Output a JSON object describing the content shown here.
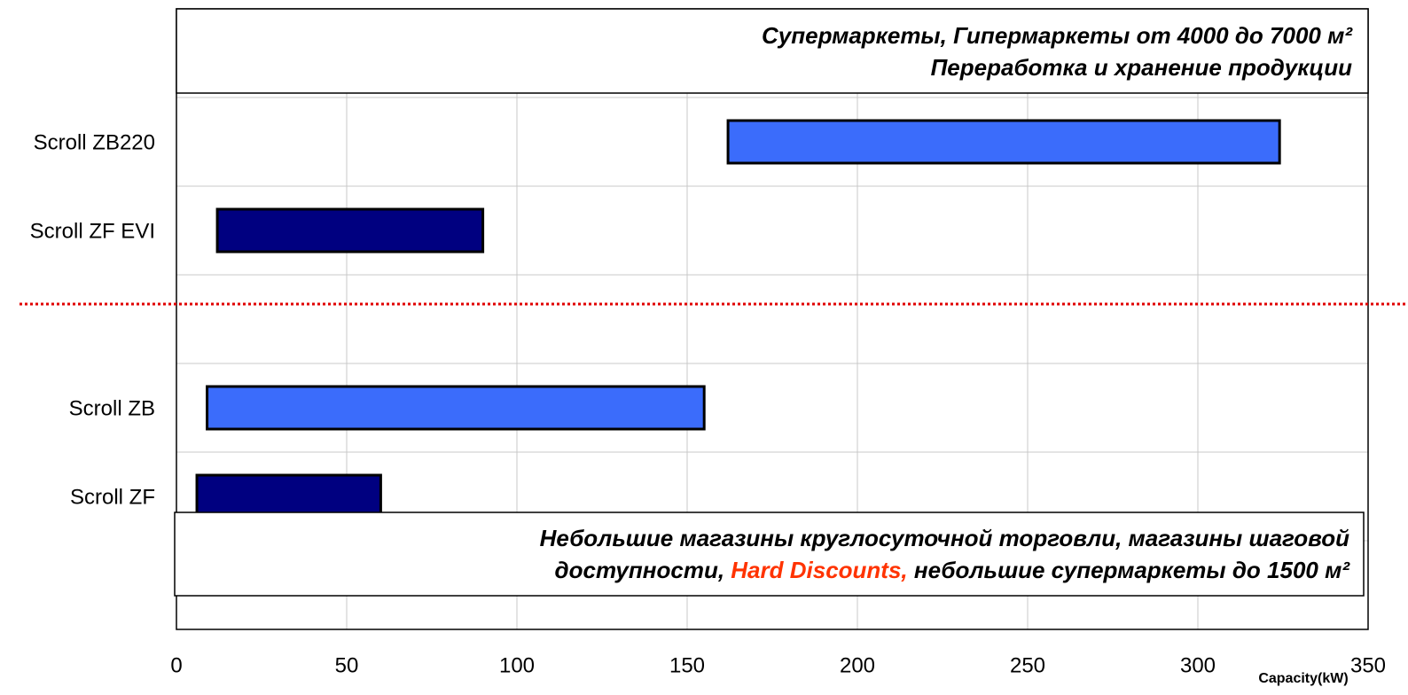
{
  "chart_data": {
    "type": "range-bar",
    "categories": [
      null,
      "Scroll ZB220",
      "Scroll ZF EVI",
      null,
      "Scroll ZB",
      "Scroll ZF",
      null
    ],
    "starts": [
      null,
      162,
      12,
      null,
      9,
      6,
      null
    ],
    "ends": [
      null,
      324,
      90,
      null,
      155,
      60,
      null
    ],
    "colors": [
      null,
      "#3b6cfb",
      "#000080",
      null,
      "#3b6cfb",
      "#000080",
      null
    ],
    "xlim": [
      0,
      350
    ],
    "xticks": [
      0,
      50,
      100,
      150,
      200,
      250,
      300,
      350
    ],
    "xlabel": "Capacity(kW)",
    "grid": true,
    "annotations": {
      "top": [
        "Супермаркеты, Гипермаркеты от 4000 до 7000 м²",
        "Переработка и хранение продукции"
      ],
      "bottom": [
        "Небольшие магазины круглосуточной торговли, магазины шаговой",
        "доступности, ",
        "Hard Discounts,",
        " небольшие супермаркеты до 1500 м²"
      ],
      "highlight_color": "#ff3300"
    }
  }
}
